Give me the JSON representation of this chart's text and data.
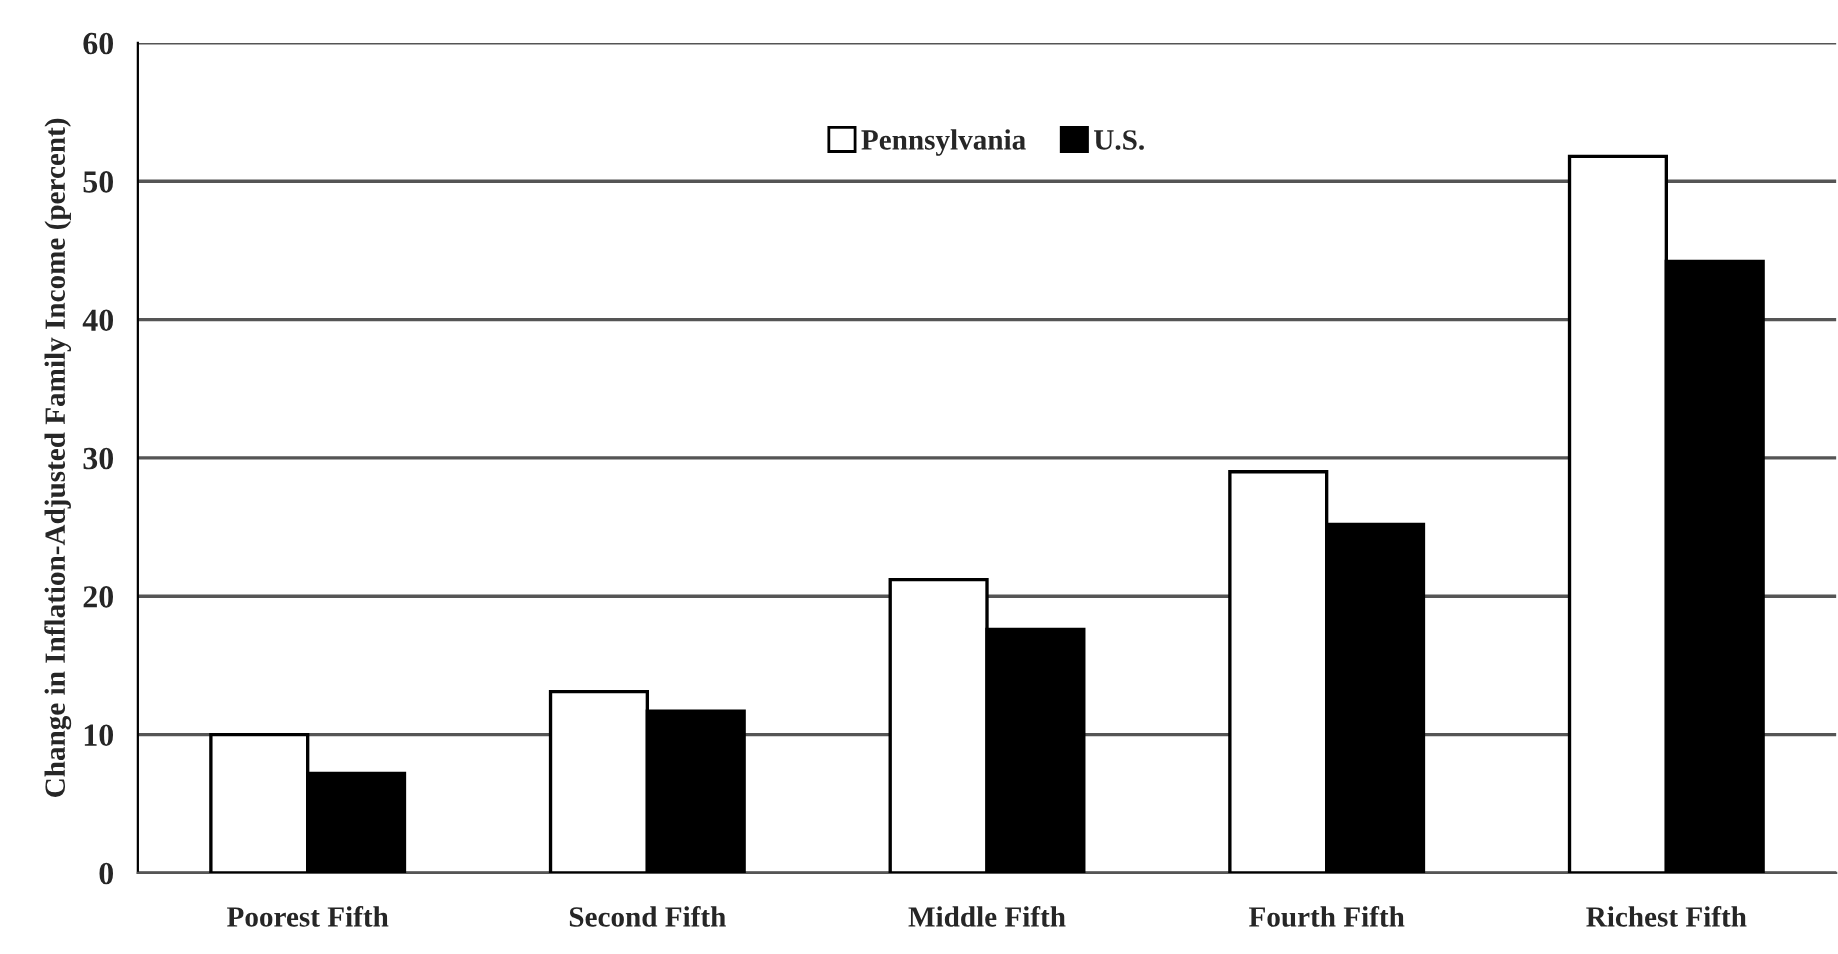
{
  "chart_data": {
    "type": "bar",
    "ylabel": "Change in Inflation-Adjusted Family Income (percent)",
    "categories": [
      "Poorest Fifth",
      "Second Fifth",
      "Middle Fifth",
      "Fourth Fifth",
      "Richest Fifth"
    ],
    "series": [
      {
        "name": "Pennsylvania",
        "color": "#ffffff",
        "values": [
          10.0,
          13.1,
          21.2,
          29.0,
          51.8
        ]
      },
      {
        "name": "U.S.",
        "color": "#000000",
        "values": [
          7.2,
          11.7,
          17.6,
          25.2,
          44.2
        ]
      }
    ],
    "ylim": [
      0,
      60
    ],
    "yticks": [
      0,
      10,
      20,
      30,
      40,
      50,
      60
    ],
    "grid": "y",
    "legend": "top"
  }
}
